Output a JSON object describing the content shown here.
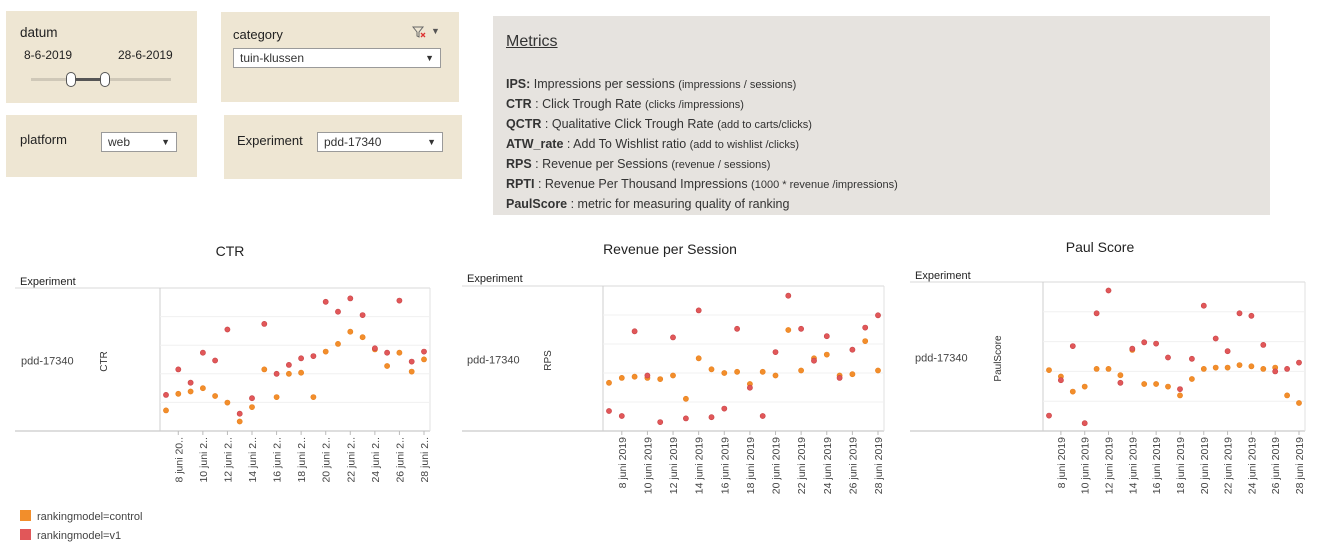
{
  "filters": {
    "datum": {
      "label": "datum",
      "start": "8-6-2019",
      "end": "28-6-2019",
      "range_start_fraction": 0.4,
      "range_end_fraction": 0.8
    },
    "category": {
      "label": "category",
      "value": "tuin-klussen",
      "filter_icon": "filter-clear-icon"
    },
    "platform": {
      "label": "platform",
      "value": "web"
    },
    "experiment": {
      "label": "Experiment",
      "value": "pdd-17340"
    }
  },
  "metrics": {
    "title": "Metrics",
    "lines": [
      {
        "key": "IPS:",
        "text": " Impressions per sessions ",
        "note": "(impressions / sessions)"
      },
      {
        "key": "CTR",
        "text": " : Click Trough Rate ",
        "note": "(clicks /impressions)"
      },
      {
        "key": "QCTR",
        "text": " : Qualitative Click Trough Rate ",
        "note": "(add to carts/clicks)"
      },
      {
        "key": "ATW_rate",
        "text": " : Add To Wishlist ratio ",
        "note": "(add to wishlist /clicks)"
      },
      {
        "key": "RPS",
        "text": " : Revenue per Sessions ",
        "note": "(revenue / sessions)"
      },
      {
        "key": "RPTI",
        "text": " : Revenue Per Thousand Impressions ",
        "note": "(1000 * revenue /impressions)"
      },
      {
        "key": "PaulScore",
        "text": " : metric for measuring quality of ranking",
        "note": ""
      }
    ]
  },
  "colors": {
    "control": "#f28e2b",
    "v1": "#e15759",
    "panel": "#eee6d3",
    "metrics_bg": "#e6e3df"
  },
  "legend": [
    {
      "label": "rankingmodel=control",
      "color": "#f28e2b"
    },
    {
      "label": "rankingmodel=v1",
      "color": "#e15759"
    }
  ],
  "chart_data": [
    {
      "type": "scatter",
      "title": "CTR",
      "row_header": "Experiment",
      "row_label": "pdd-17340",
      "ylabel": "CTR",
      "x_tick_labels": [
        "8 juni 20..",
        "10 juni 2..",
        "12 juni 2..",
        "14 juni 2..",
        "16 juni 2..",
        "18 juni 2..",
        "20 juni 2..",
        "22 juni 2..",
        "24 juni 2..",
        "26 juni 2..",
        "28 juni 2.."
      ],
      "x": [
        "7 jun",
        "8 jun",
        "9 jun",
        "10 jun",
        "11 jun",
        "12 jun",
        "13 jun",
        "14 jun",
        "15 jun",
        "16 jun",
        "17 jun",
        "18 jun",
        "19 jun",
        "20 jun",
        "21 jun",
        "22 jun",
        "23 jun",
        "24 jun",
        "25 jun",
        "26 jun",
        "27 jun",
        "28 jun"
      ],
      "series": [
        {
          "name": "rankingmodel=control",
          "values": [
            0.15,
            0.3,
            0.32,
            0.35,
            0.28,
            0.22,
            0.05,
            0.18,
            0.52,
            0.27,
            0.48,
            0.49,
            0.27,
            0.68,
            0.75,
            0.86,
            0.81,
            0.7,
            0.55,
            0.67,
            0.5,
            0.61
          ]
        },
        {
          "name": "rankingmodel=v1",
          "values": [
            0.29,
            0.52,
            0.4,
            0.67,
            0.6,
            0.88,
            0.12,
            0.26,
            0.93,
            0.48,
            0.56,
            0.62,
            0.64,
            1.13,
            1.04,
            1.16,
            1.01,
            0.71,
            0.67,
            1.14,
            0.59,
            0.68
          ]
        }
      ]
    },
    {
      "type": "scatter",
      "title": "Revenue per Session",
      "row_header": "Experiment",
      "row_label": "pdd-17340",
      "ylabel": "RPS",
      "x_tick_labels": [
        "8 juni 2019",
        "10 juni 2019",
        "12 juni 2019",
        "14 juni 2019",
        "16 juni 2019",
        "18 juni 2019",
        "20 juni 2019",
        "22 juni 2019",
        "24 juni 2019",
        "26 juni 2019",
        "28 juni 2019"
      ],
      "x": [
        "7 jun",
        "8 jun",
        "9 jun",
        "10 jun",
        "11 jun",
        "12 jun",
        "13 jun",
        "14 jun",
        "15 jun",
        "16 jun",
        "17 jun",
        "18 jun",
        "19 jun",
        "20 jun",
        "21 jun",
        "22 jun",
        "23 jun",
        "24 jun",
        "25 jun",
        "26 jun",
        "27 jun",
        "28 jun"
      ],
      "series": [
        {
          "name": "rankingmodel=control",
          "values": [
            0.36,
            0.4,
            0.41,
            0.4,
            0.39,
            0.42,
            0.23,
            0.56,
            0.47,
            0.44,
            0.45,
            0.35,
            0.45,
            0.42,
            0.79,
            0.46,
            0.56,
            0.59,
            0.42,
            0.43,
            0.7,
            0.46
          ]
        },
        {
          "name": "rankingmodel=v1",
          "values": [
            0.13,
            0.09,
            0.78,
            0.42,
            0.04,
            0.73,
            0.07,
            0.95,
            0.08,
            0.15,
            0.8,
            0.32,
            0.09,
            0.61,
            1.07,
            0.8,
            0.54,
            0.74,
            0.4,
            0.63,
            0.81,
            0.91
          ]
        }
      ]
    },
    {
      "type": "scatter",
      "title": "Paul Score",
      "row_header": "Experiment",
      "row_label": "pdd-17340",
      "ylabel": "PaulScore",
      "x_tick_labels": [
        "8 juni 2019",
        "10 juni 2019",
        "12 juni 2019",
        "14 juni 2019",
        "16 juni 2019",
        "18 juni 2019",
        "20 juni 2019",
        "22 juni 2019",
        "24 juni 2019",
        "26 juni 2019",
        "28 juni 2019"
      ],
      "x": [
        "7 jun",
        "8 jun",
        "9 jun",
        "10 jun",
        "11 jun",
        "12 jun",
        "13 jun",
        "14 jun",
        "15 jun",
        "16 jun",
        "17 jun",
        "18 jun",
        "19 jun",
        "20 jun",
        "21 jun",
        "22 jun",
        "23 jun",
        "24 jun",
        "25 jun",
        "26 jun",
        "27 jun",
        "28 jun"
      ],
      "series": [
        {
          "name": "rankingmodel=control",
          "values": [
            0.45,
            0.4,
            0.28,
            0.32,
            0.46,
            0.46,
            0.41,
            0.61,
            0.34,
            0.34,
            0.32,
            0.25,
            0.38,
            0.46,
            0.47,
            0.47,
            0.49,
            0.48,
            0.46,
            0.47,
            0.25,
            0.19
          ]
        },
        {
          "name": "rankingmodel=v1",
          "values": [
            0.09,
            0.37,
            0.64,
            0.03,
            0.9,
            1.08,
            0.35,
            0.62,
            0.67,
            0.66,
            0.55,
            0.3,
            0.54,
            0.96,
            0.7,
            0.6,
            0.9,
            0.88,
            0.65,
            0.44,
            0.46,
            0.51
          ]
        }
      ]
    }
  ]
}
